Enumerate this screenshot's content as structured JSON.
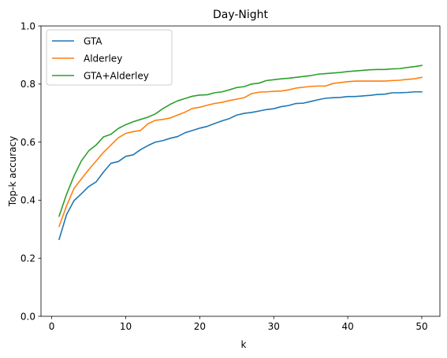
{
  "chart_data": {
    "type": "line",
    "title": "Day-Night",
    "xlabel": "k",
    "ylabel": "Top-k accuracy",
    "xlim": [
      -1.45,
      52.45
    ],
    "ylim": [
      0.0,
      1.0
    ],
    "xticks": [
      0,
      10,
      20,
      30,
      40,
      50
    ],
    "yticks": [
      0.0,
      0.2,
      0.4,
      0.6,
      0.8,
      1.0
    ],
    "xtick_labels": [
      "0",
      "10",
      "20",
      "30",
      "40",
      "50"
    ],
    "ytick_labels": [
      "0.0",
      "0.2",
      "0.4",
      "0.6",
      "0.8",
      "1.0"
    ],
    "grid": false,
    "legend_position": "top-left",
    "x": [
      1,
      2,
      3,
      4,
      5,
      6,
      7,
      8,
      9,
      10,
      11,
      12,
      13,
      14,
      15,
      16,
      17,
      18,
      19,
      20,
      21,
      22,
      23,
      24,
      25,
      26,
      27,
      28,
      29,
      30,
      31,
      32,
      33,
      34,
      35,
      36,
      37,
      38,
      39,
      40,
      41,
      42,
      43,
      44,
      45,
      46,
      47,
      48,
      49,
      50
    ],
    "series": [
      {
        "name": "GTA",
        "color": "#1f77b4",
        "values": [
          0.265,
          0.35,
          0.398,
          0.422,
          0.447,
          0.463,
          0.497,
          0.527,
          0.533,
          0.551,
          0.556,
          0.574,
          0.588,
          0.6,
          0.605,
          0.613,
          0.619,
          0.632,
          0.64,
          0.648,
          0.654,
          0.664,
          0.673,
          0.681,
          0.693,
          0.699,
          0.702,
          0.707,
          0.712,
          0.715,
          0.722,
          0.726,
          0.733,
          0.734,
          0.74,
          0.746,
          0.751,
          0.753,
          0.754,
          0.757,
          0.757,
          0.759,
          0.761,
          0.764,
          0.765,
          0.77,
          0.77,
          0.771,
          0.773,
          0.773
        ]
      },
      {
        "name": "Alderley",
        "color": "#ff7f0e",
        "values": [
          0.31,
          0.38,
          0.44,
          0.473,
          0.505,
          0.535,
          0.565,
          0.59,
          0.615,
          0.63,
          0.636,
          0.64,
          0.663,
          0.675,
          0.678,
          0.683,
          0.693,
          0.703,
          0.716,
          0.72,
          0.727,
          0.733,
          0.737,
          0.743,
          0.748,
          0.753,
          0.767,
          0.772,
          0.773,
          0.775,
          0.776,
          0.78,
          0.786,
          0.789,
          0.792,
          0.793,
          0.793,
          0.802,
          0.805,
          0.808,
          0.81,
          0.81,
          0.81,
          0.81,
          0.81,
          0.812,
          0.813,
          0.816,
          0.818,
          0.823
        ]
      },
      {
        "name": "GTA+Alderley",
        "color": "#2ca02c",
        "values": [
          0.345,
          0.42,
          0.483,
          0.535,
          0.57,
          0.59,
          0.618,
          0.627,
          0.647,
          0.66,
          0.67,
          0.678,
          0.686,
          0.697,
          0.715,
          0.73,
          0.742,
          0.75,
          0.758,
          0.762,
          0.763,
          0.77,
          0.773,
          0.78,
          0.788,
          0.791,
          0.8,
          0.803,
          0.812,
          0.815,
          0.818,
          0.82,
          0.823,
          0.826,
          0.829,
          0.834,
          0.836,
          0.838,
          0.84,
          0.843,
          0.845,
          0.847,
          0.849,
          0.85,
          0.85,
          0.852,
          0.853,
          0.857,
          0.86,
          0.864
        ]
      }
    ]
  }
}
